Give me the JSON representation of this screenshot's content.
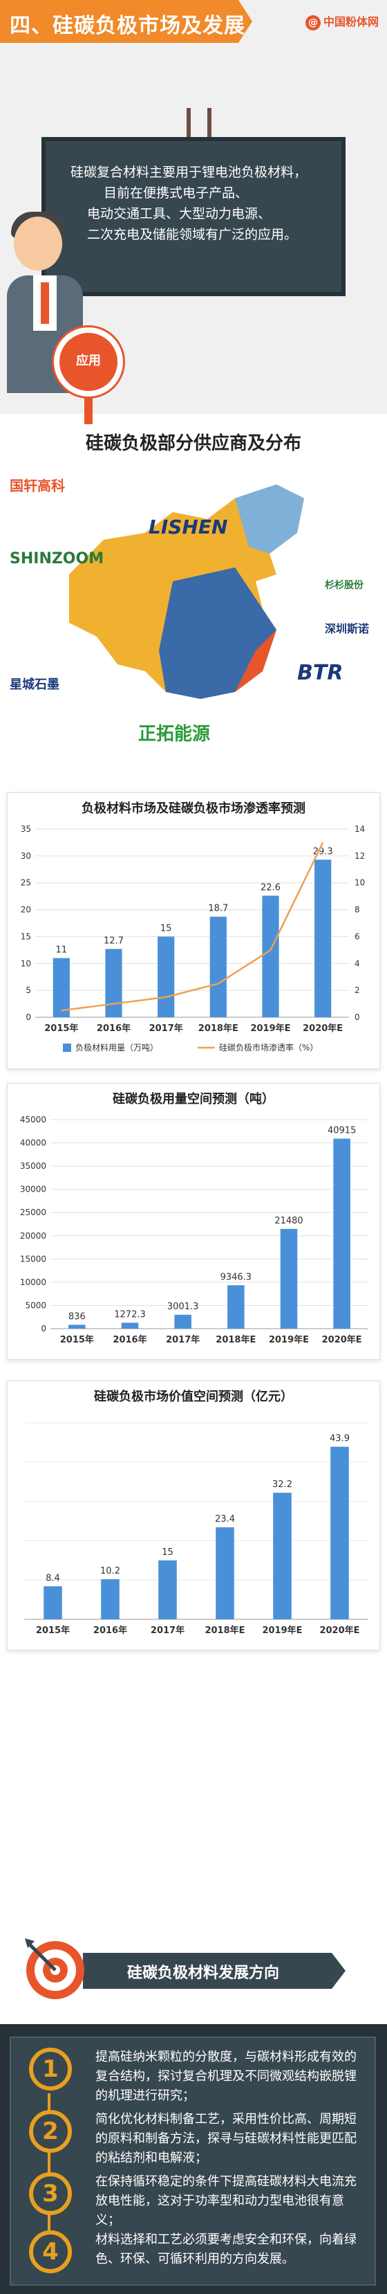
{
  "header": {
    "title": "四、硅碳负极市场及发展",
    "brand": "中国粉体网",
    "brand_icon": "at-icon"
  },
  "intro": {
    "lines": [
      "硅碳复合材料主要用于锂电池负极材料，",
      "目前在便携式电子产品、",
      "电动交通工具、大型动力电源、",
      "二次充电及储能领域有广泛的应用。"
    ],
    "sign_label": "应用"
  },
  "suppliers": {
    "title": "硅碳负极部分供应商及分布",
    "logos": [
      "国轩高科",
      "LISHEN",
      "SHINZOOM",
      "杉杉股份",
      "深圳斯诺",
      "BTR",
      "星城石墨",
      "正拓能源"
    ]
  },
  "colors": {
    "accent": "#f08a2a",
    "bar": "#4a90d9",
    "line": "#f0a050",
    "dark": "#37474f"
  },
  "chart_data": [
    {
      "type": "bar",
      "title": "负极材料市场及硅碳负极市场渗透率预测",
      "categories": [
        "2015年",
        "2016年",
        "2017年",
        "2018年E",
        "2019年E",
        "2020年E"
      ],
      "series": [
        {
          "name": "负极材料用量（万吨）",
          "values": [
            11,
            12.7,
            15,
            18.7,
            22.6,
            29.3
          ]
        },
        {
          "name": "硅碳负极市场渗透率（%）",
          "values": [
            0.5,
            1,
            1.5,
            2.5,
            5,
            13
          ],
          "kind": "line"
        }
      ],
      "ylim": [
        0,
        35
      ],
      "y_ticks": [
        0,
        5,
        10,
        15,
        20,
        25,
        30,
        35
      ],
      "y2lim": [
        0,
        14
      ],
      "y2_ticks": [
        0,
        2,
        4,
        6,
        8,
        10,
        12,
        14
      ],
      "grid": true,
      "legend": "bottom"
    },
    {
      "type": "bar",
      "title": "硅碳负极用量空间预测（吨）",
      "categories": [
        "2015年",
        "2016年",
        "2017年",
        "2018年E",
        "2019年E",
        "2020年E"
      ],
      "values": [
        836,
        1272.3,
        3001.3,
        9346.3,
        21480,
        40915
      ],
      "labels": [
        "836",
        "1272.3",
        "3001.3",
        "9346.3",
        "21480",
        "40915"
      ],
      "ylim": [
        0,
        45000
      ],
      "y_ticks": [
        0,
        5000,
        10000,
        15000,
        20000,
        25000,
        30000,
        35000,
        40000,
        45000
      ],
      "grid": true
    },
    {
      "type": "bar",
      "title": "硅碳负极市场价值空间预测（亿元）",
      "categories": [
        "2015年",
        "2016年",
        "2017年",
        "2018年E",
        "2019年E",
        "2020年E"
      ],
      "values": [
        8.4,
        10.2,
        15,
        23.4,
        32.2,
        43.9
      ],
      "labels": [
        "8.4",
        "10.2",
        "15",
        "23.4",
        "32.2",
        "43.9"
      ],
      "ylim": [
        0,
        50
      ],
      "grid": true
    }
  ],
  "direction": {
    "title": "硅碳负极材料发展方向",
    "items": [
      {
        "num": "1",
        "text": "提高硅纳米颗粒的分散度，与碳材料形成有效的复合结构，探讨复合机理及不同微观结构嵌脱锂的机理进行研究；"
      },
      {
        "num": "2",
        "text": "简化优化材料制备工艺，采用性价比高、周期短的原料和制备方法，探寻与硅碳材料性能更匹配的粘结剂和电解液；"
      },
      {
        "num": "3",
        "text": "在保持循环稳定的条件下提高硅碳材料大电流充放电性能，这对于功率型和动力型电池很有意义；"
      },
      {
        "num": "4",
        "text": "材料选择和工艺必须要考虑安全和环保，向着绿色、环保、可循环利用的方向发展。"
      }
    ]
  }
}
